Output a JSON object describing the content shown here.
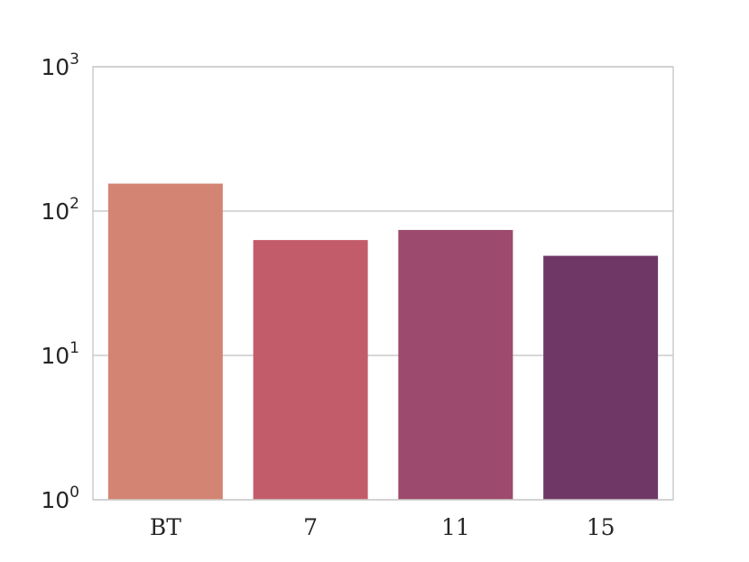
{
  "chart_data": {
    "type": "bar",
    "categories": [
      "BT",
      "7",
      "11",
      "15"
    ],
    "values": [
      155,
      63,
      74,
      49
    ],
    "colors": [
      "#d48472",
      "#c35c6a",
      "#9c4a6d",
      "#6f3766"
    ],
    "yscale": "log",
    "ylim": [
      1,
      1000
    ],
    "yticks": [
      {
        "value": 1,
        "base": "10",
        "exp": "0"
      },
      {
        "value": 10,
        "base": "10",
        "exp": "1"
      },
      {
        "value": 100,
        "base": "10",
        "exp": "2"
      },
      {
        "value": 1000,
        "base": "10",
        "exp": "3"
      }
    ],
    "grid": "y",
    "title": "",
    "xlabel": "",
    "ylabel": ""
  }
}
